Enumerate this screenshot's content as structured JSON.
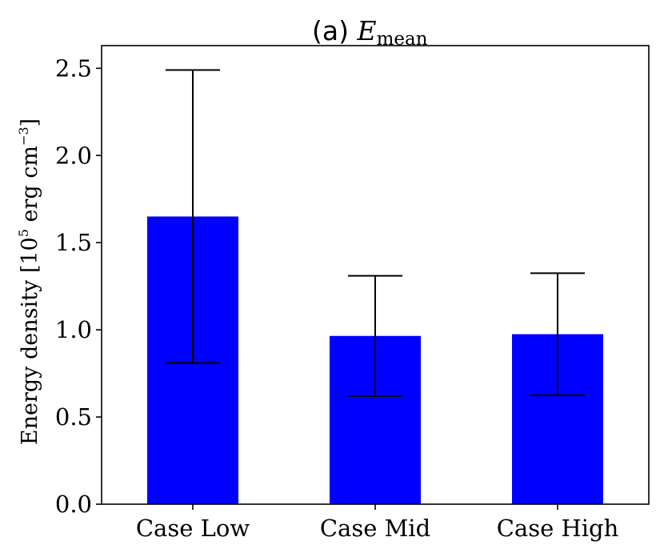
{
  "chart_data": {
    "type": "bar",
    "title": {
      "prefix": "(a) ",
      "symbol": "E",
      "subscript": "mean"
    },
    "ylabel": {
      "text": "Energy density [10",
      "exp1": "5",
      "mid": " erg cm",
      "exp2": "−3",
      "end": "]"
    },
    "categories": [
      "Case Low",
      "Case Mid",
      "Case High"
    ],
    "values": [
      1.65,
      0.965,
      0.975
    ],
    "error_low": [
      0.81,
      0.62,
      0.625
    ],
    "error_high": [
      2.49,
      1.31,
      1.325
    ],
    "ylim": [
      0,
      2.63
    ],
    "yticks": [
      0.0,
      0.5,
      1.0,
      1.5,
      2.0,
      2.5
    ],
    "ytick_labels": [
      "0.0",
      "0.5",
      "1.0",
      "1.5",
      "2.0",
      "2.5"
    ],
    "bar_color": "#0000ff",
    "grid": false
  }
}
